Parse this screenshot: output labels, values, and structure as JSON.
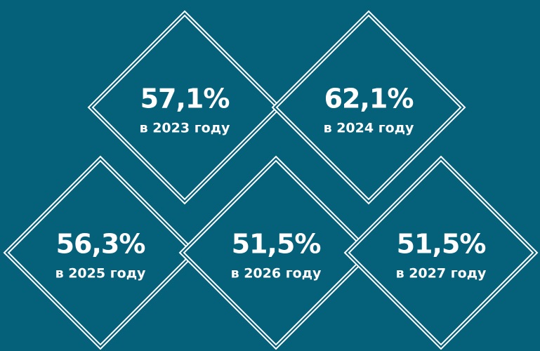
{
  "items": [
    {
      "value": "57,1%",
      "caption": "в 2023 году"
    },
    {
      "value": "62,1%",
      "caption": "в 2024 году"
    },
    {
      "value": "56,3%",
      "caption": "в 2025 году"
    },
    {
      "value": "51,5%",
      "caption": "в 2026 году"
    },
    {
      "value": "51,5%",
      "caption": "в 2027 году"
    }
  ]
}
